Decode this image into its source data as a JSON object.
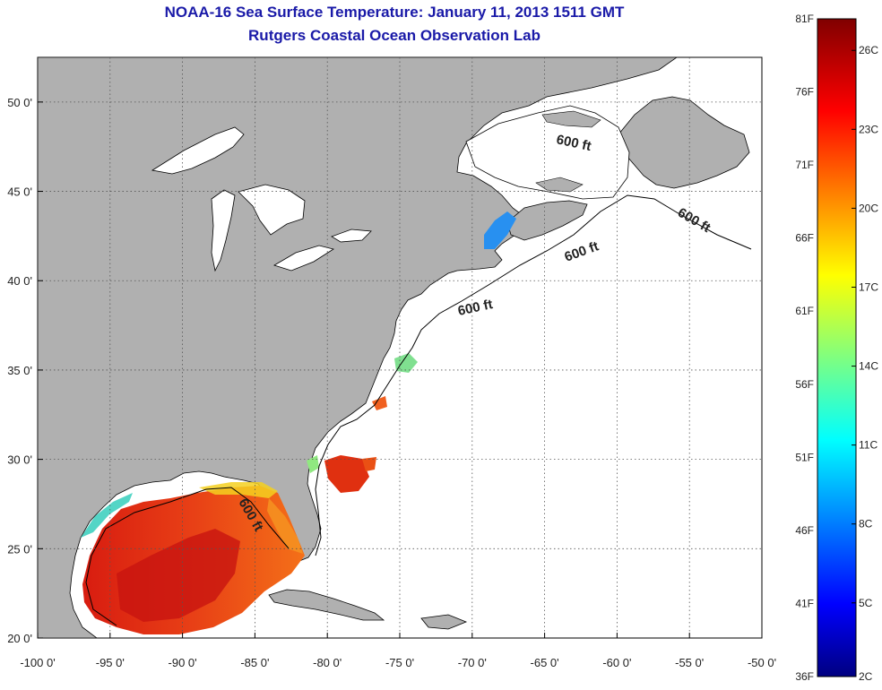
{
  "header": {
    "title": "NOAA-16 Sea Surface Temperature:  January 11, 2013 1511 GMT",
    "subtitle": "Rutgers Coastal Ocean Observation Lab"
  },
  "axes": {
    "lon_ticks": [
      "-100 0'",
      "-95 0'",
      "-90 0'",
      "-85 0'",
      "-80 0'",
      "-75 0'",
      "-70 0'",
      "-65 0'",
      "-60 0'",
      "-55 0'",
      "-50 0'"
    ],
    "lat_ticks": [
      "20 0'",
      "25 0'",
      "30 0'",
      "35 0'",
      "40 0'",
      "45 0'",
      "50 0'"
    ]
  },
  "contours": {
    "label": "600 ft"
  },
  "colorbar": {
    "f_labels": [
      "81F",
      "76F",
      "71F",
      "66F",
      "61F",
      "56F",
      "51F",
      "46F",
      "41F",
      "36F"
    ],
    "c_labels": [
      "26C",
      "23C",
      "20C",
      "17C",
      "14C",
      "11C",
      "8C",
      "5C",
      "2C"
    ]
  },
  "colors": {
    "land": "#b0b0b0",
    "ocean": "#ffffff",
    "title": "#1a1aa8"
  }
}
